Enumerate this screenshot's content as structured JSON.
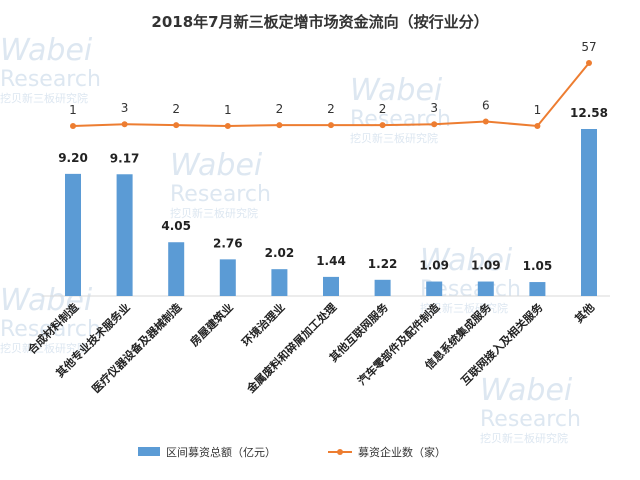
{
  "colors": {
    "bar": "#5b9bd5",
    "line": "#ed7d31",
    "axis": "#d9d9d9",
    "watermark": "#dde7f1"
  },
  "watermark": {
    "brand": "Wabei",
    "sub": "Research",
    "cn": "挖贝新三板研究院"
  },
  "chart_data": {
    "type": "bar",
    "title": "2018年7月新三板定增市场资金流向（按行业分）",
    "categories": [
      "合成材料制造",
      "其他专业技术服务业",
      "医疗仪器设备及器械制造",
      "房屋建筑业",
      "环境治理业",
      "金属废料和碎屑加工处理",
      "其他互联网服务",
      "汽车零部件及配件制造",
      "信息系统集成服务",
      "互联网接入及相关服务",
      "其他"
    ],
    "series": [
      {
        "name": "区间募资总额（亿元）",
        "type": "bar",
        "values": [
          9.2,
          9.17,
          4.05,
          2.76,
          2.02,
          1.44,
          1.22,
          1.09,
          1.09,
          1.05,
          12.58
        ],
        "value_labels": [
          "9.20",
          "9.17",
          "4.05",
          "2.76",
          "2.02",
          "1.44",
          "1.22",
          "1.09",
          "1.09",
          "1.05",
          "12.58"
        ]
      },
      {
        "name": "募资企业数（家）",
        "type": "line",
        "values": [
          1,
          3,
          2,
          1,
          2,
          2,
          2,
          3,
          6,
          1,
          57
        ]
      }
    ],
    "legend_position": "bottom",
    "grid": false
  }
}
